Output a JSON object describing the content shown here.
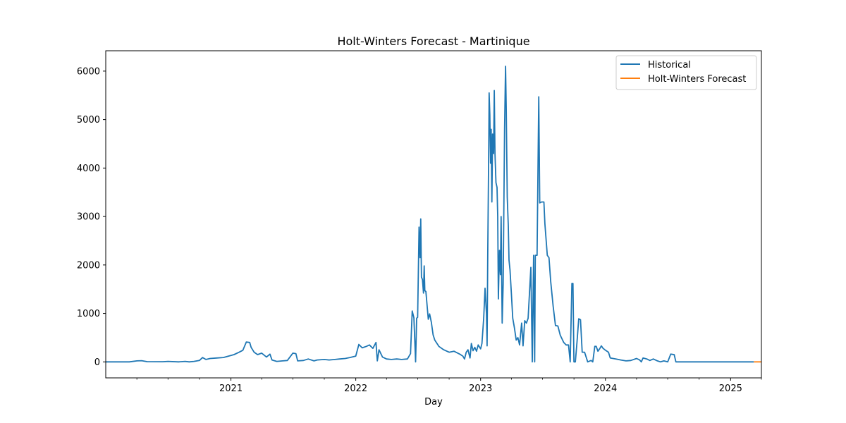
{
  "chart_data": {
    "type": "line",
    "title": "Holt-Winters Forecast - Martinique",
    "xlabel": "Day",
    "ylabel": "",
    "ylim": [
      -330,
      6420
    ],
    "xlim": [
      "2020-01-01",
      "2025-04-01"
    ],
    "yticks": [
      0,
      1000,
      2000,
      3000,
      4000,
      5000,
      6000
    ],
    "xticks": [
      {
        "date": "2021-01-01",
        "label": "2021"
      },
      {
        "date": "2022-01-01",
        "label": "2022"
      },
      {
        "date": "2023-01-01",
        "label": "2023"
      },
      {
        "date": "2024-01-01",
        "label": "2024"
      },
      {
        "date": "2025-01-01",
        "label": "2025"
      }
    ],
    "minor_ticks": [
      "2020-04-01",
      "2020-07-01",
      "2020-10-01",
      "2021-04-01",
      "2021-07-01",
      "2021-10-01",
      "2022-04-01",
      "2022-07-01",
      "2022-10-01",
      "2023-04-01",
      "2023-07-01",
      "2023-10-01",
      "2024-04-01",
      "2024-07-01",
      "2024-10-01",
      "2025-04-01"
    ],
    "legend_position": "top-right",
    "grid": false,
    "series": [
      {
        "name": "Historical",
        "color": "#1f77b4",
        "points": [
          [
            "2020-01-01",
            0
          ],
          [
            "2020-03-10",
            0
          ],
          [
            "2020-04-01",
            20
          ],
          [
            "2020-04-15",
            25
          ],
          [
            "2020-05-01",
            5
          ],
          [
            "2020-06-15",
            3
          ],
          [
            "2020-07-01",
            10
          ],
          [
            "2020-08-01",
            0
          ],
          [
            "2020-08-20",
            10
          ],
          [
            "2020-09-01",
            0
          ],
          [
            "2020-09-15",
            10
          ],
          [
            "2020-10-01",
            30
          ],
          [
            "2020-10-10",
            90
          ],
          [
            "2020-10-20",
            50
          ],
          [
            "2020-11-01",
            70
          ],
          [
            "2020-11-20",
            80
          ],
          [
            "2020-12-10",
            90
          ],
          [
            "2020-12-25",
            120
          ],
          [
            "2021-01-10",
            150
          ],
          [
            "2021-01-25",
            200
          ],
          [
            "2021-02-05",
            240
          ],
          [
            "2021-02-15",
            410
          ],
          [
            "2021-02-25",
            400
          ],
          [
            "2021-03-01",
            300
          ],
          [
            "2021-03-10",
            200
          ],
          [
            "2021-03-20",
            150
          ],
          [
            "2021-04-01",
            180
          ],
          [
            "2021-04-15",
            100
          ],
          [
            "2021-04-25",
            160
          ],
          [
            "2021-05-01",
            40
          ],
          [
            "2021-05-15",
            10
          ],
          [
            "2021-06-01",
            20
          ],
          [
            "2021-06-15",
            30
          ],
          [
            "2021-07-01",
            180
          ],
          [
            "2021-07-10",
            170
          ],
          [
            "2021-07-15",
            20
          ],
          [
            "2021-08-01",
            30
          ],
          [
            "2021-08-15",
            60
          ],
          [
            "2021-09-01",
            20
          ],
          [
            "2021-09-10",
            40
          ],
          [
            "2021-10-01",
            50
          ],
          [
            "2021-10-15",
            40
          ],
          [
            "2021-11-01",
            50
          ],
          [
            "2021-11-15",
            60
          ],
          [
            "2021-12-01",
            70
          ],
          [
            "2021-12-15",
            90
          ],
          [
            "2022-01-01",
            120
          ],
          [
            "2022-01-10",
            360
          ],
          [
            "2022-01-20",
            290
          ],
          [
            "2022-02-01",
            320
          ],
          [
            "2022-02-10",
            350
          ],
          [
            "2022-02-20",
            280
          ],
          [
            "2022-03-01",
            400
          ],
          [
            "2022-03-05",
            20
          ],
          [
            "2022-03-10",
            250
          ],
          [
            "2022-03-20",
            100
          ],
          [
            "2022-04-01",
            60
          ],
          [
            "2022-04-15",
            50
          ],
          [
            "2022-05-01",
            60
          ],
          [
            "2022-05-15",
            50
          ],
          [
            "2022-06-01",
            60
          ],
          [
            "2022-06-10",
            170
          ],
          [
            "2022-06-15",
            1050
          ],
          [
            "2022-06-20",
            910
          ],
          [
            "2022-06-25",
            0
          ],
          [
            "2022-06-28",
            900
          ],
          [
            "2022-07-01",
            920
          ],
          [
            "2022-07-05",
            2780
          ],
          [
            "2022-07-08",
            2150
          ],
          [
            "2022-07-10",
            2950
          ],
          [
            "2022-07-12",
            1750
          ],
          [
            "2022-07-15",
            1700
          ],
          [
            "2022-07-18",
            1420
          ],
          [
            "2022-07-20",
            1980
          ],
          [
            "2022-07-22",
            1470
          ],
          [
            "2022-07-25",
            1450
          ],
          [
            "2022-08-01",
            880
          ],
          [
            "2022-08-05",
            990
          ],
          [
            "2022-08-10",
            820
          ],
          [
            "2022-08-15",
            560
          ],
          [
            "2022-08-20",
            450
          ],
          [
            "2022-09-01",
            320
          ],
          [
            "2022-09-15",
            250
          ],
          [
            "2022-10-01",
            200
          ],
          [
            "2022-10-15",
            220
          ],
          [
            "2022-11-01",
            160
          ],
          [
            "2022-11-10",
            120
          ],
          [
            "2022-11-15",
            60
          ],
          [
            "2022-11-20",
            200
          ],
          [
            "2022-11-25",
            250
          ],
          [
            "2022-12-01",
            80
          ],
          [
            "2022-12-05",
            380
          ],
          [
            "2022-12-10",
            230
          ],
          [
            "2022-12-15",
            300
          ],
          [
            "2022-12-20",
            220
          ],
          [
            "2022-12-25",
            350
          ],
          [
            "2023-01-01",
            270
          ],
          [
            "2023-01-05",
            380
          ],
          [
            "2023-01-10",
            900
          ],
          [
            "2023-01-14",
            1520
          ],
          [
            "2023-01-18",
            1000
          ],
          [
            "2023-01-20",
            330
          ],
          [
            "2023-01-22",
            2300
          ],
          [
            "2023-01-25",
            4500
          ],
          [
            "2023-01-26",
            5550
          ],
          [
            "2023-01-28",
            5100
          ],
          [
            "2023-01-30",
            4100
          ],
          [
            "2023-02-01",
            4800
          ],
          [
            "2023-02-03",
            3300
          ],
          [
            "2023-02-05",
            4700
          ],
          [
            "2023-02-08",
            4300
          ],
          [
            "2023-02-10",
            5600
          ],
          [
            "2023-02-12",
            4300
          ],
          [
            "2023-02-15",
            3700
          ],
          [
            "2023-02-18",
            3600
          ],
          [
            "2023-02-20",
            3000
          ],
          [
            "2023-02-22",
            1300
          ],
          [
            "2023-02-25",
            2300
          ],
          [
            "2023-02-28",
            1800
          ],
          [
            "2023-03-02",
            3000
          ],
          [
            "2023-03-05",
            800
          ],
          [
            "2023-03-08",
            1600
          ],
          [
            "2023-03-12",
            4800
          ],
          [
            "2023-03-15",
            6100
          ],
          [
            "2023-03-17",
            5200
          ],
          [
            "2023-03-20",
            3400
          ],
          [
            "2023-03-23",
            2800
          ],
          [
            "2023-03-25",
            2100
          ],
          [
            "2023-03-28",
            1900
          ],
          [
            "2023-04-01",
            1400
          ],
          [
            "2023-04-05",
            900
          ],
          [
            "2023-04-10",
            700
          ],
          [
            "2023-04-15",
            450
          ],
          [
            "2023-04-20",
            500
          ],
          [
            "2023-04-25",
            350
          ],
          [
            "2023-05-01",
            800
          ],
          [
            "2023-05-05",
            330
          ],
          [
            "2023-05-10",
            850
          ],
          [
            "2023-05-15",
            800
          ],
          [
            "2023-05-20",
            900
          ],
          [
            "2023-05-28",
            1950
          ],
          [
            "2023-06-01",
            0
          ],
          [
            "2023-06-05",
            2200
          ],
          [
            "2023-06-08",
            0
          ],
          [
            "2023-06-10",
            2200
          ],
          [
            "2023-06-15",
            2200
          ],
          [
            "2023-06-20",
            5470
          ],
          [
            "2023-06-23",
            3280
          ],
          [
            "2023-06-28",
            3300
          ],
          [
            "2023-07-05",
            3300
          ],
          [
            "2023-07-08",
            2850
          ],
          [
            "2023-07-15",
            2200
          ],
          [
            "2023-07-20",
            2150
          ],
          [
            "2023-07-25",
            1650
          ],
          [
            "2023-08-01",
            1150
          ],
          [
            "2023-08-08",
            750
          ],
          [
            "2023-08-15",
            740
          ],
          [
            "2023-08-22",
            550
          ],
          [
            "2023-09-01",
            400
          ],
          [
            "2023-09-08",
            350
          ],
          [
            "2023-09-15",
            350
          ],
          [
            "2023-09-20",
            0
          ],
          [
            "2023-09-25",
            1620
          ],
          [
            "2023-09-28",
            1620
          ],
          [
            "2023-10-01",
            0
          ],
          [
            "2023-10-05",
            0
          ],
          [
            "2023-10-10",
            420
          ],
          [
            "2023-10-15",
            890
          ],
          [
            "2023-10-20",
            870
          ],
          [
            "2023-10-25",
            200
          ],
          [
            "2023-11-01",
            200
          ],
          [
            "2023-11-10",
            0
          ],
          [
            "2023-11-20",
            30
          ],
          [
            "2023-11-25",
            0
          ],
          [
            "2023-12-01",
            320
          ],
          [
            "2023-12-05",
            320
          ],
          [
            "2023-12-10",
            220
          ],
          [
            "2023-12-15",
            270
          ],
          [
            "2023-12-20",
            330
          ],
          [
            "2023-12-25",
            280
          ],
          [
            "2024-01-01",
            240
          ],
          [
            "2024-01-10",
            200
          ],
          [
            "2024-01-15",
            80
          ],
          [
            "2024-02-01",
            60
          ],
          [
            "2024-02-15",
            40
          ],
          [
            "2024-03-01",
            20
          ],
          [
            "2024-03-15",
            30
          ],
          [
            "2024-04-01",
            70
          ],
          [
            "2024-04-10",
            40
          ],
          [
            "2024-04-15",
            0
          ],
          [
            "2024-04-20",
            80
          ],
          [
            "2024-05-01",
            60
          ],
          [
            "2024-05-10",
            30
          ],
          [
            "2024-05-20",
            60
          ],
          [
            "2024-06-01",
            20
          ],
          [
            "2024-06-10",
            0
          ],
          [
            "2024-06-20",
            20
          ],
          [
            "2024-07-01",
            0
          ],
          [
            "2024-07-10",
            160
          ],
          [
            "2024-07-20",
            150
          ],
          [
            "2024-07-25",
            0
          ],
          [
            "2025-03-10",
            0
          ]
        ]
      },
      {
        "name": "Holt-Winters Forecast",
        "color": "#ff7f0e",
        "points": [
          [
            "2025-03-10",
            0
          ],
          [
            "2025-04-01",
            0
          ]
        ]
      }
    ]
  }
}
